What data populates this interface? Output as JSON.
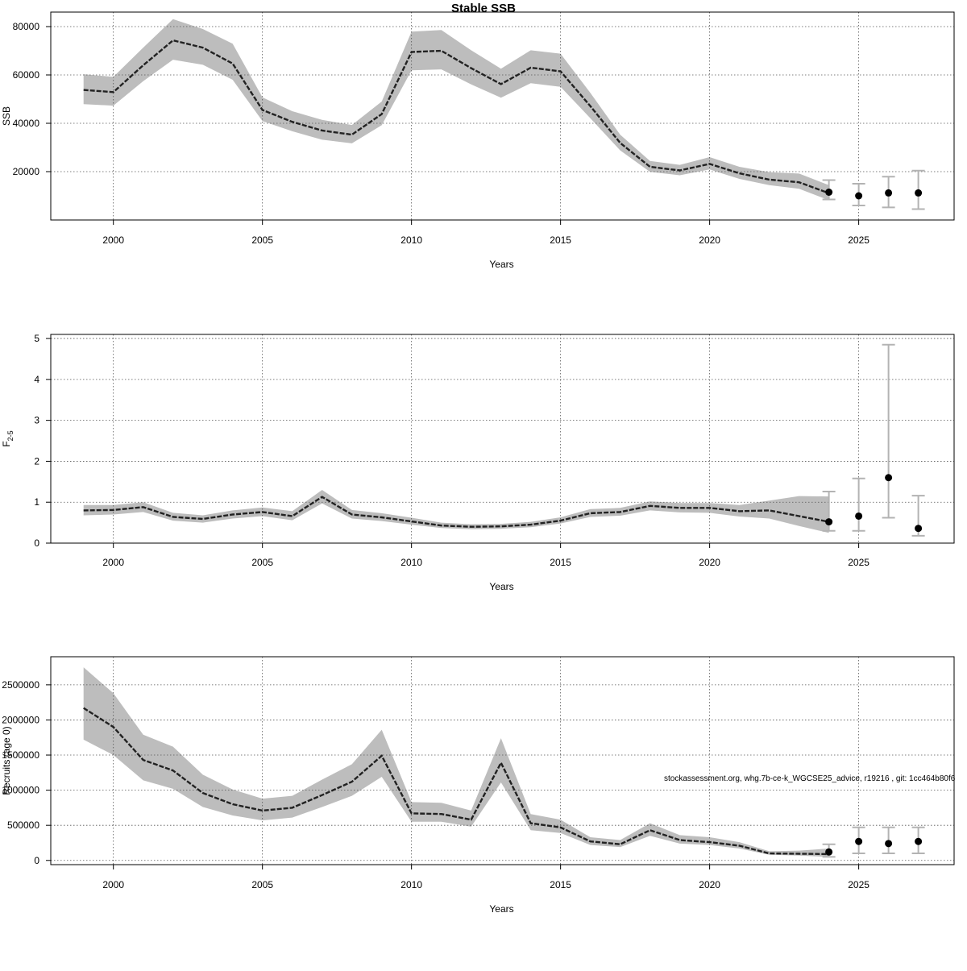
{
  "title": "Stable SSB",
  "watermark": "stockassessment.org, whg.7b-ce-k_WGCSE25_advice, r19216 , git: 1cc464b80f6",
  "colors": {
    "band": "#bdbdbd",
    "line": "#222222",
    "grid": "#555555",
    "errorbar": "#b3b3b3",
    "point": "#000000"
  },
  "chart_data": [
    {
      "id": "ssb",
      "type": "line",
      "xlabel": "Years",
      "ylabel": "SSB",
      "xlim": [
        1997.9,
        2028.2
      ],
      "ylim": [
        0,
        86000
      ],
      "xticks": [
        2000,
        2005,
        2010,
        2015,
        2020,
        2025
      ],
      "yticks": [
        20000,
        40000,
        60000,
        80000
      ],
      "ytick_labels": [
        "20000",
        "40000",
        "60000",
        "80000"
      ],
      "grid": true,
      "x": [
        1999,
        2000,
        2001,
        2002,
        2003,
        2004,
        2005,
        2006,
        2007,
        2008,
        2009,
        2010,
        2011,
        2012,
        2013,
        2014,
        2015,
        2016,
        2017,
        2018,
        2019,
        2020,
        2021,
        2022,
        2023,
        2024
      ],
      "y": [
        53800,
        52900,
        64000,
        74300,
        71300,
        64700,
        45500,
        40600,
        37000,
        35300,
        43800,
        69500,
        70000,
        62800,
        56200,
        63000,
        61500,
        47100,
        31900,
        22000,
        20500,
        23200,
        19300,
        16700,
        15600,
        11100
      ],
      "lower": [
        47900,
        47300,
        57400,
        66300,
        64200,
        58000,
        40900,
        36700,
        33200,
        31700,
        39200,
        61900,
        62300,
        56100,
        50600,
        56600,
        55100,
        42100,
        28800,
        19900,
        18500,
        20900,
        17000,
        14400,
        12900,
        8200
      ],
      "upper": [
        60300,
        59200,
        71300,
        83100,
        79000,
        72900,
        50700,
        45000,
        41400,
        39300,
        49000,
        77900,
        78600,
        70200,
        62600,
        70200,
        68800,
        52600,
        35300,
        24400,
        22800,
        26000,
        22000,
        19800,
        19200,
        14400
      ],
      "projection": {
        "x": [
          2024,
          2025,
          2026,
          2027
        ],
        "y": [
          11500,
          10000,
          11200,
          11200
        ],
        "lower": [
          8500,
          6000,
          5200,
          4500
        ],
        "upper": [
          16500,
          15000,
          17900,
          20400
        ]
      }
    },
    {
      "id": "fbar",
      "type": "line",
      "xlabel": "Years",
      "ylabel": "F",
      "ylabel_subscript": "2-5",
      "xlim": [
        1997.9,
        2028.2
      ],
      "ylim": [
        0,
        5.1
      ],
      "xticks": [
        2000,
        2005,
        2010,
        2015,
        2020,
        2025
      ],
      "yticks": [
        0,
        1,
        2,
        3,
        4,
        5
      ],
      "ytick_labels": [
        "0",
        "1",
        "2",
        "3",
        "4",
        "5"
      ],
      "grid": true,
      "x": [
        1999,
        2000,
        2001,
        2002,
        2003,
        2004,
        2005,
        2006,
        2007,
        2008,
        2009,
        2010,
        2011,
        2012,
        2013,
        2014,
        2015,
        2016,
        2017,
        2018,
        2019,
        2020,
        2021,
        2022,
        2023,
        2024
      ],
      "y": [
        0.8,
        0.81,
        0.88,
        0.64,
        0.59,
        0.7,
        0.76,
        0.66,
        1.13,
        0.7,
        0.63,
        0.53,
        0.43,
        0.4,
        0.41,
        0.45,
        0.55,
        0.73,
        0.76,
        0.91,
        0.86,
        0.86,
        0.78,
        0.8,
        0.66,
        0.52
      ],
      "lower": [
        0.68,
        0.7,
        0.76,
        0.55,
        0.5,
        0.6,
        0.66,
        0.56,
        0.97,
        0.6,
        0.54,
        0.45,
        0.37,
        0.34,
        0.35,
        0.39,
        0.48,
        0.64,
        0.67,
        0.8,
        0.75,
        0.74,
        0.65,
        0.6,
        0.42,
        0.25
      ],
      "upper": [
        0.93,
        0.93,
        1.0,
        0.74,
        0.68,
        0.8,
        0.87,
        0.78,
        1.3,
        0.81,
        0.73,
        0.62,
        0.5,
        0.46,
        0.47,
        0.52,
        0.63,
        0.83,
        0.86,
        1.02,
        0.98,
        0.98,
        0.93,
        1.04,
        1.15,
        1.14
      ],
      "projection": {
        "x": [
          2024,
          2025,
          2026,
          2027
        ],
        "y": [
          0.52,
          0.66,
          1.6,
          0.36
        ],
        "lower": [
          0.3,
          0.3,
          0.62,
          0.18
        ],
        "upper": [
          1.26,
          1.58,
          4.85,
          1.16
        ]
      }
    },
    {
      "id": "rec",
      "type": "line",
      "xlabel": "Years",
      "ylabel": "Recruits (age 0)",
      "xlim": [
        1997.9,
        2028.2
      ],
      "ylim": [
        -60000,
        2900000
      ],
      "xticks": [
        2000,
        2005,
        2010,
        2015,
        2020,
        2025
      ],
      "yticks": [
        0,
        500000,
        1000000,
        1500000,
        2000000,
        2500000
      ],
      "ytick_labels": [
        "0",
        "500000",
        "1000000",
        "1500000",
        "2000000",
        "2500000"
      ],
      "grid": true,
      "x": [
        1999,
        2000,
        2001,
        2002,
        2003,
        2004,
        2005,
        2006,
        2007,
        2008,
        2009,
        2010,
        2011,
        2012,
        2013,
        2014,
        2015,
        2016,
        2017,
        2018,
        2019,
        2020,
        2021,
        2022,
        2023,
        2024
      ],
      "y": [
        2170000,
        1900000,
        1430000,
        1280000,
        960000,
        800000,
        710000,
        750000,
        930000,
        1120000,
        1490000,
        670000,
        660000,
        580000,
        1390000,
        530000,
        470000,
        270000,
        230000,
        430000,
        290000,
        260000,
        210000,
        100000,
        95000,
        90000
      ],
      "lower": [
        1720000,
        1500000,
        1140000,
        1020000,
        760000,
        640000,
        570000,
        610000,
        760000,
        920000,
        1190000,
        550000,
        550000,
        480000,
        1110000,
        430000,
        390000,
        220000,
        190000,
        350000,
        240000,
        220000,
        170000,
        80000,
        70000,
        50000
      ],
      "upper": [
        2750000,
        2380000,
        1790000,
        1620000,
        1220000,
        1010000,
        880000,
        920000,
        1150000,
        1370000,
        1860000,
        830000,
        820000,
        710000,
        1740000,
        660000,
        580000,
        330000,
        290000,
        530000,
        360000,
        330000,
        260000,
        130000,
        140000,
        170000
      ],
      "projection": {
        "x": [
          2024,
          2025,
          2026,
          2027
        ],
        "y": [
          120000,
          270000,
          240000,
          270000
        ],
        "lower": [
          50000,
          100000,
          100000,
          100000
        ],
        "upper": [
          230000,
          470000,
          470000,
          470000
        ]
      }
    }
  ]
}
